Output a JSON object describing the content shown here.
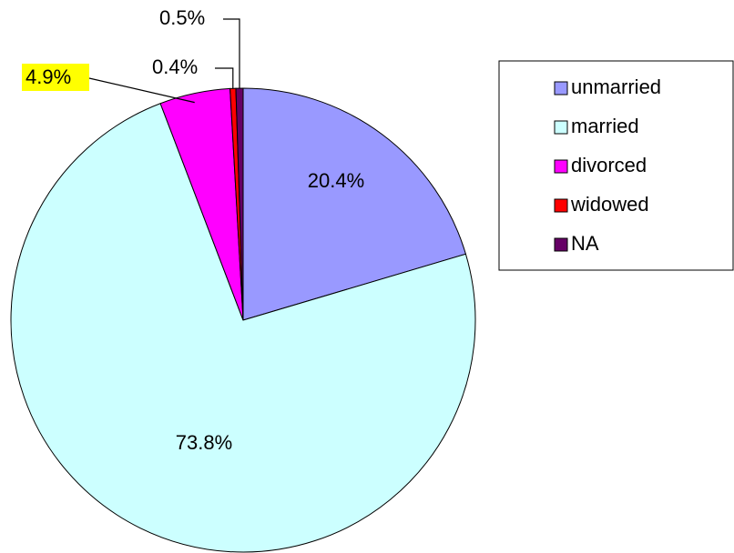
{
  "chart_data": {
    "type": "pie",
    "title": "",
    "slices": [
      {
        "name": "unmarried",
        "value": 20.4,
        "label": "20.4%",
        "color": "#9999ff"
      },
      {
        "name": "married",
        "value": 73.8,
        "label": "73.8%",
        "color": "#ccffff"
      },
      {
        "name": "divorced",
        "value": 4.9,
        "label": "4.9%",
        "color": "#ff00ff",
        "highlighted": true,
        "highlight_color": "#ffff00"
      },
      {
        "name": "widowed",
        "value": 0.4,
        "label": "0.4%",
        "color": "#ff0000"
      },
      {
        "name": "NA",
        "value": 0.5,
        "label": "0.5%",
        "color": "#660066"
      }
    ],
    "legend": {
      "position": "right",
      "items": [
        "unmarried",
        "married",
        "divorced",
        "widowed",
        "NA"
      ]
    }
  }
}
